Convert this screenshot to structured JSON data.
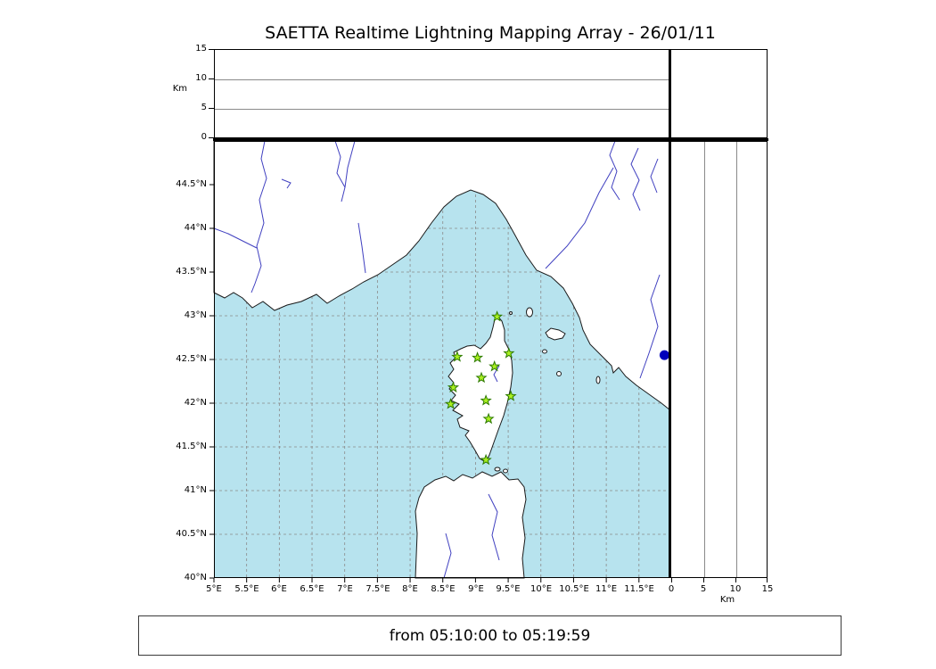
{
  "title": "SAETTA Realtime Lightning Mapping Array - 26/01/11",
  "footer": {
    "range_text": "from 05:10:00 to 05:19:59"
  },
  "axes": {
    "alt_left": {
      "unit_label": "Km",
      "ticks": [
        "15",
        "10",
        "5",
        "0"
      ]
    },
    "alt_right": {
      "unit_label": "Km",
      "ticks": [
        "0",
        "5",
        "10",
        "15"
      ]
    },
    "lat_ticks": [
      "44.5°N",
      "44°N",
      "43.5°N",
      "43°N",
      "42.5°N",
      "42°N",
      "41.5°N",
      "41°N",
      "40.5°N",
      "40°N"
    ],
    "lon_ticks": [
      "5°E",
      "5.5°E",
      "6°E",
      "6.5°E",
      "7°E",
      "7.5°E",
      "8°E",
      "8.5°E",
      "9°E",
      "9.5°E",
      "10°E",
      "10.5°E",
      "11°E",
      "11.5°E"
    ]
  },
  "map": {
    "extent": {
      "lon_min": 5,
      "lon_max": 11.98,
      "lat_min": 40,
      "lat_max": 45
    },
    "colors": {
      "sea": "#b7e3ee",
      "land": "#ffffff",
      "coast": "#1a1a1a",
      "river": "#4040c0",
      "grid": "#8a8a8a",
      "station_fill": "#aaf020",
      "station_edge": "#2d7a00",
      "event": "#0000bb"
    },
    "stations": [
      {
        "lon": 9.33,
        "lat": 42.99
      },
      {
        "lon": 8.72,
        "lat": 42.53
      },
      {
        "lon": 9.03,
        "lat": 42.52
      },
      {
        "lon": 9.51,
        "lat": 42.57
      },
      {
        "lon": 9.29,
        "lat": 42.42
      },
      {
        "lon": 9.09,
        "lat": 42.29
      },
      {
        "lon": 8.66,
        "lat": 42.18
      },
      {
        "lon": 8.62,
        "lat": 41.99
      },
      {
        "lon": 9.54,
        "lat": 42.08
      },
      {
        "lon": 9.16,
        "lat": 42.03
      },
      {
        "lon": 9.2,
        "lat": 41.82
      },
      {
        "lon": 9.16,
        "lat": 41.35
      }
    ],
    "event_marker": {
      "lon": 11.89,
      "lat": 42.55
    }
  }
}
